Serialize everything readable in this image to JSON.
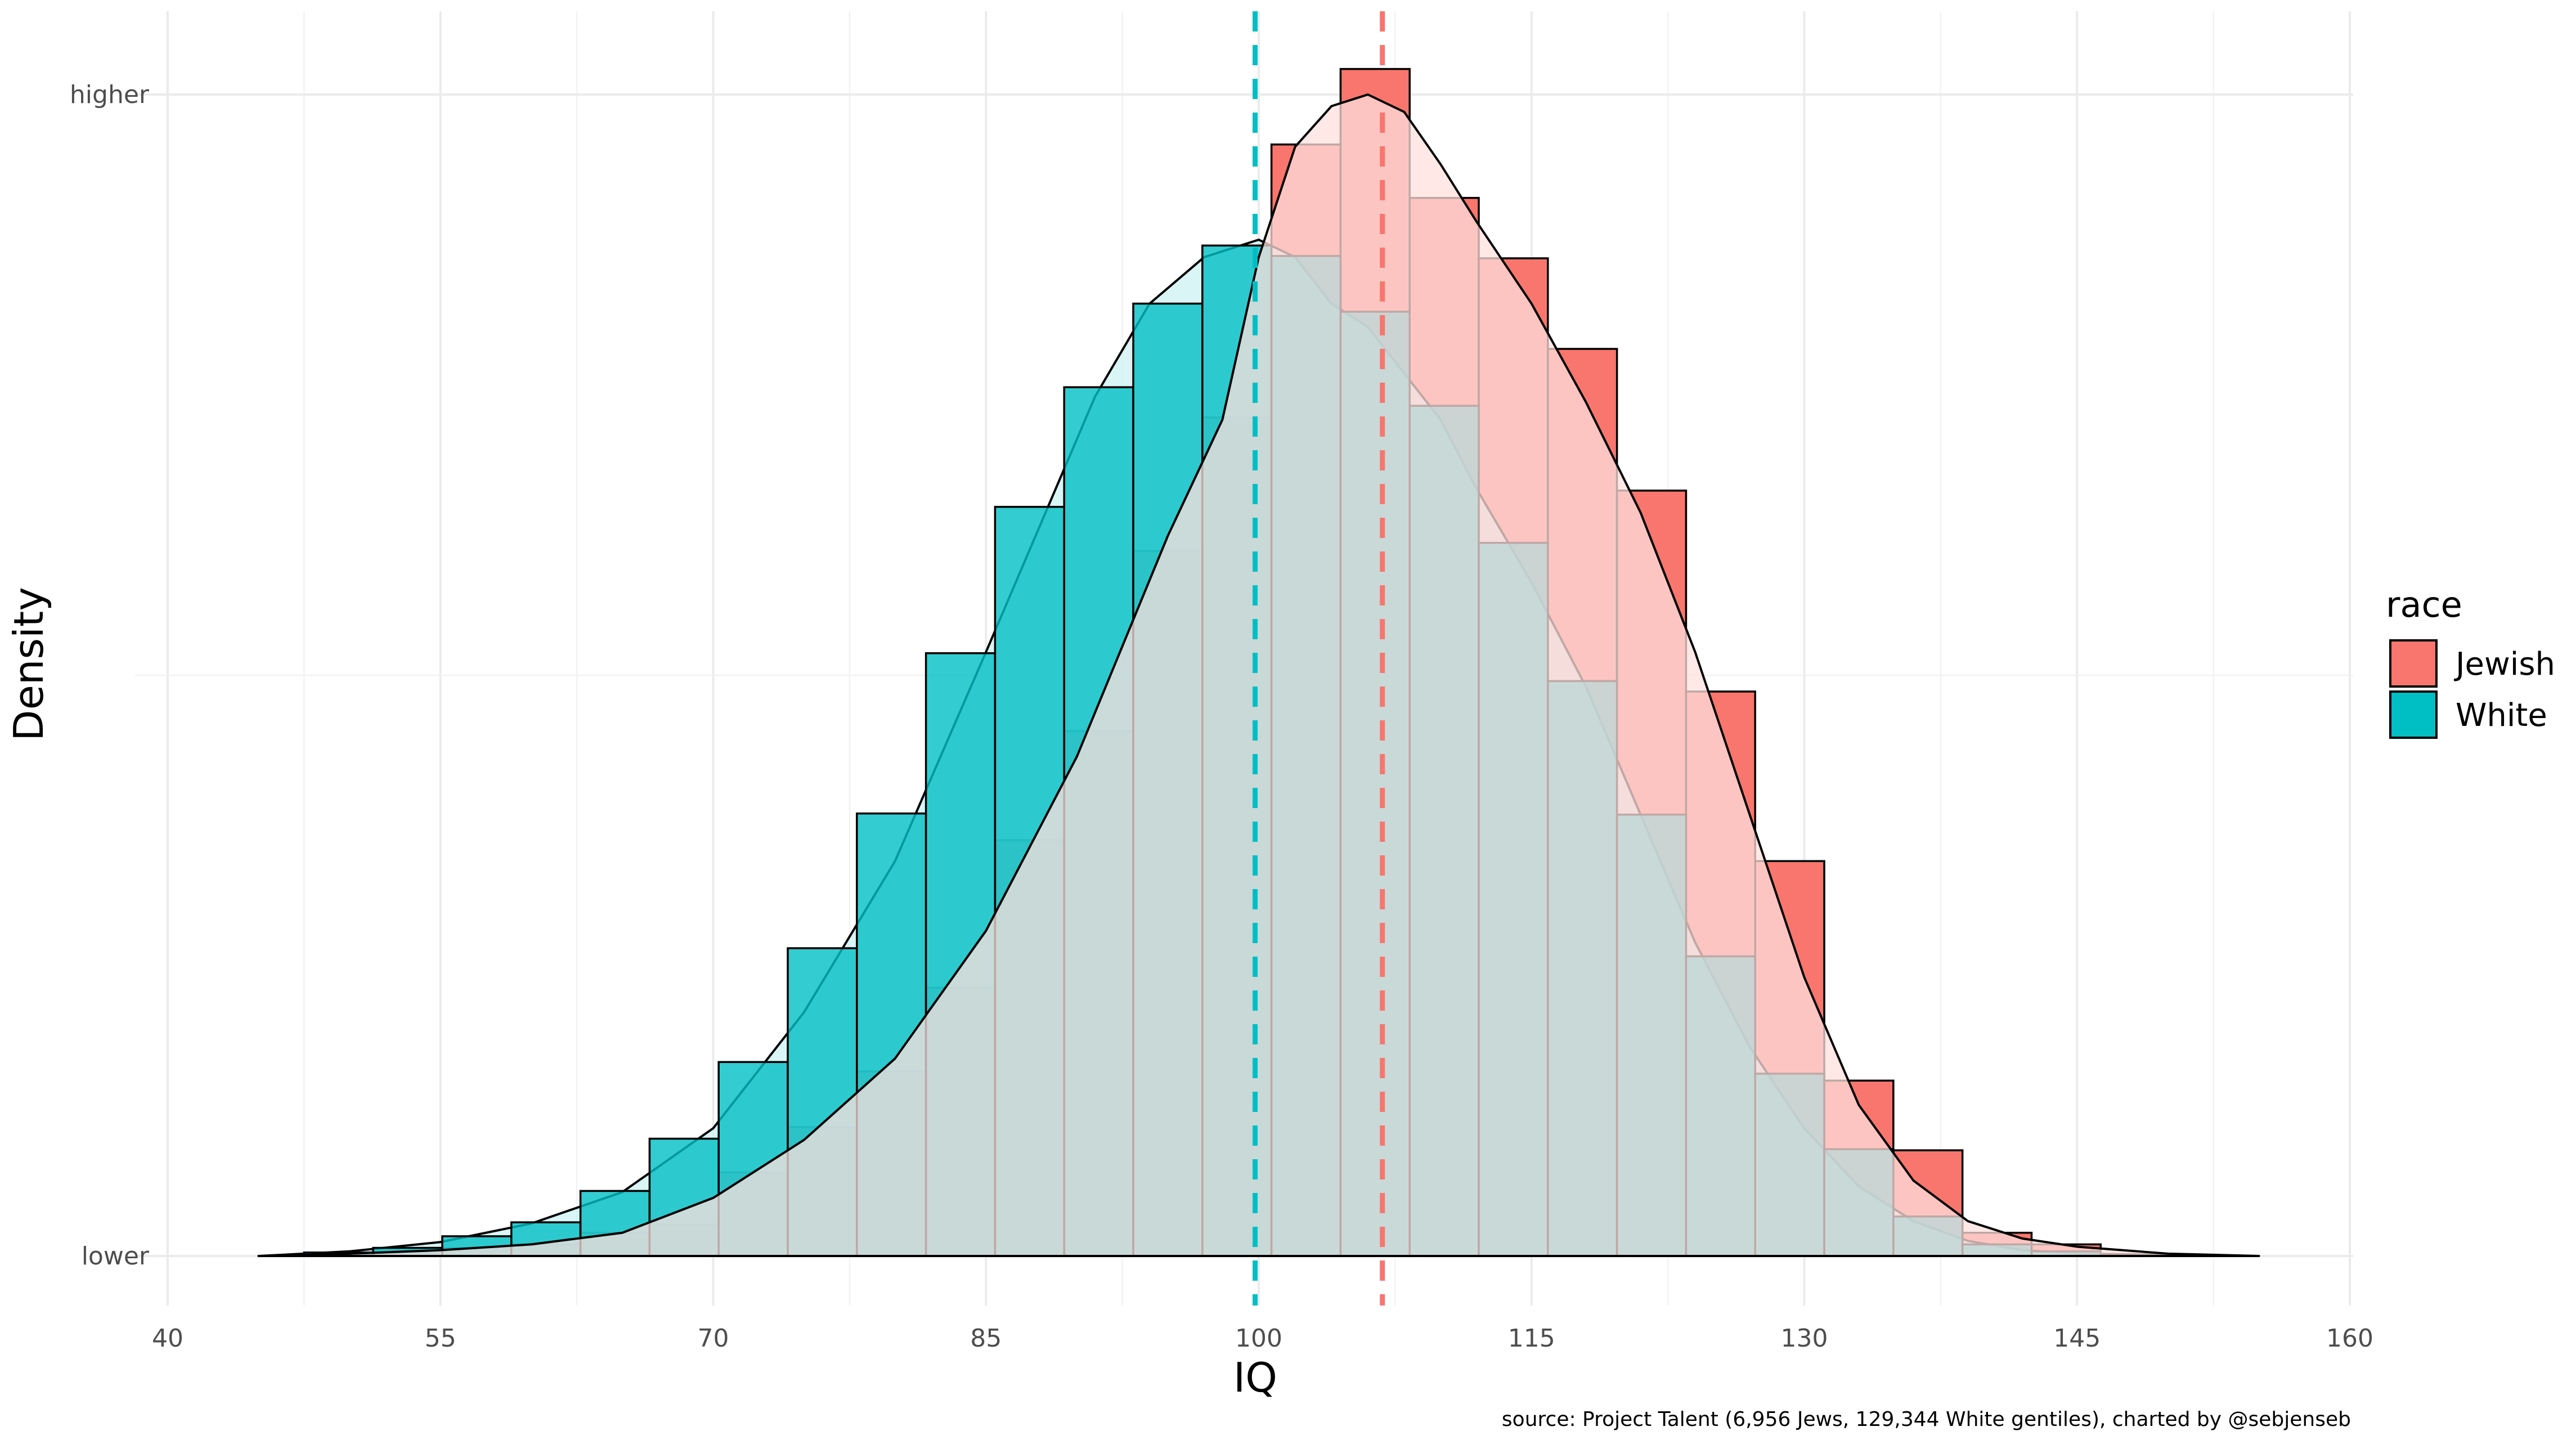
{
  "chart_data": {
    "type": "histogram-density",
    "xlabel": "IQ",
    "ylabel": "Density",
    "xlim": [
      40,
      160
    ],
    "x_ticks": [
      40,
      55,
      70,
      85,
      100,
      115,
      130,
      145,
      160
    ],
    "y_ticks": [
      {
        "label": "lower",
        "value": 0
      },
      {
        "label": "higher",
        "value": 1
      }
    ],
    "legend": {
      "title": "race",
      "position": "right"
    },
    "caption": "source: Project Talent (6,956 Jews, 129,344 White gentiles), charted by @sebjenseb",
    "bin_width": 3.8,
    "series": [
      {
        "name": "Jewish",
        "color": "#F8766D",
        "fill_color": "#FFE0DE",
        "mean": 106.8,
        "bins": [
          {
            "x": 49.4,
            "value": 0.001
          },
          {
            "x": 53.2,
            "value": 0.003
          },
          {
            "x": 57.0,
            "value": 0.007
          },
          {
            "x": 60.8,
            "value": 0.01
          },
          {
            "x": 64.6,
            "value": 0.02
          },
          {
            "x": 68.4,
            "value": 0.027
          },
          {
            "x": 72.2,
            "value": 0.072
          },
          {
            "x": 76.0,
            "value": 0.111
          },
          {
            "x": 79.8,
            "value": 0.159
          },
          {
            "x": 83.6,
            "value": 0.231
          },
          {
            "x": 87.4,
            "value": 0.358
          },
          {
            "x": 91.2,
            "value": 0.452
          },
          {
            "x": 95.0,
            "value": 0.607
          },
          {
            "x": 98.8,
            "value": 0.722
          },
          {
            "x": 102.6,
            "value": 0.957
          },
          {
            "x": 106.4,
            "value": 1.022
          },
          {
            "x": 110.2,
            "value": 0.911
          },
          {
            "x": 114.0,
            "value": 0.859
          },
          {
            "x": 117.8,
            "value": 0.781
          },
          {
            "x": 121.6,
            "value": 0.659
          },
          {
            "x": 125.4,
            "value": 0.486
          },
          {
            "x": 129.2,
            "value": 0.34
          },
          {
            "x": 133.0,
            "value": 0.151
          },
          {
            "x": 136.8,
            "value": 0.091
          },
          {
            "x": 140.6,
            "value": 0.02
          },
          {
            "x": 144.4,
            "value": 0.01
          }
        ]
      },
      {
        "name": "White",
        "color": "#00BFC4",
        "fill_color": "#CCF2F3",
        "mean": 99.8,
        "bins": [
          {
            "x": 49.4,
            "value": 0.003
          },
          {
            "x": 53.2,
            "value": 0.007
          },
          {
            "x": 57.0,
            "value": 0.017
          },
          {
            "x": 60.8,
            "value": 0.029
          },
          {
            "x": 64.6,
            "value": 0.056
          },
          {
            "x": 68.4,
            "value": 0.101
          },
          {
            "x": 72.2,
            "value": 0.167
          },
          {
            "x": 76.0,
            "value": 0.265
          },
          {
            "x": 79.8,
            "value": 0.381
          },
          {
            "x": 83.6,
            "value": 0.519
          },
          {
            "x": 87.4,
            "value": 0.645
          },
          {
            "x": 91.2,
            "value": 0.748
          },
          {
            "x": 95.0,
            "value": 0.82
          },
          {
            "x": 98.8,
            "value": 0.87
          },
          {
            "x": 102.6,
            "value": 0.861
          },
          {
            "x": 106.4,
            "value": 0.813
          },
          {
            "x": 110.2,
            "value": 0.732
          },
          {
            "x": 114.0,
            "value": 0.614
          },
          {
            "x": 117.8,
            "value": 0.495
          },
          {
            "x": 121.6,
            "value": 0.38
          },
          {
            "x": 125.4,
            "value": 0.258
          },
          {
            "x": 129.2,
            "value": 0.157
          },
          {
            "x": 133.0,
            "value": 0.092
          },
          {
            "x": 136.8,
            "value": 0.034
          },
          {
            "x": 140.6,
            "value": 0.01
          },
          {
            "x": 144.4,
            "value": 0.004
          }
        ]
      }
    ],
    "density_curves": [
      {
        "name": "Jewish",
        "points": [
          [
            45,
            0
          ],
          [
            50,
            0.002
          ],
          [
            55,
            0.005
          ],
          [
            60,
            0.01
          ],
          [
            65,
            0.02
          ],
          [
            70,
            0.05
          ],
          [
            75,
            0.1
          ],
          [
            80,
            0.17
          ],
          [
            85,
            0.28
          ],
          [
            90,
            0.43
          ],
          [
            95,
            0.62
          ],
          [
            98,
            0.72
          ],
          [
            100,
            0.86
          ],
          [
            102,
            0.955
          ],
          [
            104,
            0.99
          ],
          [
            106,
            1.0
          ],
          [
            108,
            0.985
          ],
          [
            110,
            0.94
          ],
          [
            112,
            0.89
          ],
          [
            115,
            0.82
          ],
          [
            118,
            0.735
          ],
          [
            121,
            0.64
          ],
          [
            124,
            0.52
          ],
          [
            127,
            0.38
          ],
          [
            130,
            0.24
          ],
          [
            133,
            0.13
          ],
          [
            136,
            0.065
          ],
          [
            139,
            0.03
          ],
          [
            142,
            0.015
          ],
          [
            145,
            0.008
          ],
          [
            150,
            0.002
          ],
          [
            155,
            0
          ]
        ]
      },
      {
        "name": "White",
        "points": [
          [
            45,
            0
          ],
          [
            50,
            0.004
          ],
          [
            55,
            0.012
          ],
          [
            60,
            0.028
          ],
          [
            65,
            0.055
          ],
          [
            70,
            0.11
          ],
          [
            75,
            0.21
          ],
          [
            80,
            0.34
          ],
          [
            85,
            0.52
          ],
          [
            88,
            0.63
          ],
          [
            91,
            0.74
          ],
          [
            94,
            0.82
          ],
          [
            97,
            0.86
          ],
          [
            100,
            0.875
          ],
          [
            102,
            0.86
          ],
          [
            104,
            0.82
          ],
          [
            106,
            0.8
          ],
          [
            108,
            0.76
          ],
          [
            110,
            0.72
          ],
          [
            112,
            0.66
          ],
          [
            115,
            0.58
          ],
          [
            118,
            0.49
          ],
          [
            121,
            0.38
          ],
          [
            124,
            0.27
          ],
          [
            127,
            0.18
          ],
          [
            130,
            0.11
          ],
          [
            133,
            0.06
          ],
          [
            136,
            0.03
          ],
          [
            139,
            0.013
          ],
          [
            142,
            0.005
          ],
          [
            145,
            0.002
          ],
          [
            150,
            0.001
          ],
          [
            155,
            0
          ]
        ]
      }
    ]
  }
}
